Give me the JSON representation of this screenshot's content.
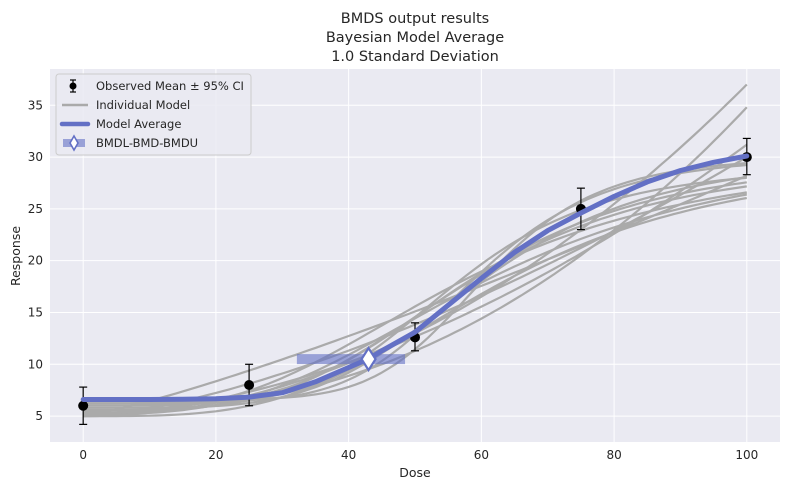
{
  "chart_data": {
    "type": "line",
    "title": [
      "BMDS output results",
      "Bayesian Model Average",
      "1.0 Standard Deviation"
    ],
    "xlabel": "Dose",
    "ylabel": "Response",
    "xlim": [
      -5,
      105
    ],
    "ylim": [
      2.5,
      38.5
    ],
    "xticks": [
      0,
      20,
      40,
      60,
      80,
      100
    ],
    "yticks": [
      5,
      10,
      15,
      20,
      25,
      30,
      35
    ],
    "grid": true,
    "legend_position": "top-left",
    "legend": [
      "Observed Mean ± 95% CI",
      "Individual Model",
      "Model Average",
      "BMDL-BMD-BMDU"
    ],
    "observed": [
      {
        "dose": 0,
        "mean": 6.0,
        "lower": 4.2,
        "upper": 7.8
      },
      {
        "dose": 25,
        "mean": 8.0,
        "lower": 6.0,
        "upper": 10.0
      },
      {
        "dose": 50,
        "mean": 12.6,
        "lower": 11.3,
        "upper": 14.0
      },
      {
        "dose": 75,
        "mean": 25.0,
        "lower": 23.0,
        "upper": 27.0
      },
      {
        "dose": 100,
        "mean": 30.0,
        "lower": 28.3,
        "upper": 31.8
      }
    ],
    "individual_models": [
      {
        "params": [
          6.6,
          23.5,
          60.6,
          7.0
        ]
      },
      {
        "params": [
          6.0,
          24.0,
          58.0,
          4.0
        ]
      },
      {
        "params": [
          5.5,
          25.0,
          57.0,
          3.0
        ]
      },
      {
        "params": [
          5.0,
          25.0,
          62.0,
          3.5
        ]
      },
      {
        "params": [
          6.2,
          23.0,
          56.0,
          5.0
        ]
      },
      {
        "params": [
          5.8,
          24.5,
          60.0,
          4.5
        ]
      },
      {
        "params": [
          5.2,
          26.0,
          61.0,
          3.0
        ]
      },
      {
        "params": [
          6.4,
          23.8,
          59.0,
          6.0
        ]
      },
      {
        "params": [
          5.6,
          24.2,
          57.5,
          3.8
        ]
      },
      {
        "powers": [
          5.0,
          32.0,
          2.0
        ]
      },
      {
        "powers": [
          5.0,
          25.0,
          1.5
        ]
      },
      {
        "powers": [
          5.3,
          29.5,
          2.3
        ]
      },
      {
        "powers": [
          5.0,
          23.2,
          1.2
        ]
      },
      {
        "powers": [
          5.2,
          26.0,
          1.8
        ]
      }
    ],
    "model_average": {
      "x": [
        0,
        5,
        10,
        15,
        20,
        25,
        30,
        35,
        40,
        43,
        45,
        50,
        55,
        60,
        65,
        70,
        75,
        80,
        85,
        90,
        95,
        100
      ],
      "y": [
        6.6,
        6.6,
        6.6,
        6.62,
        6.67,
        6.83,
        7.26,
        8.31,
        9.69,
        10.52,
        11.3,
        13.1,
        15.7,
        18.3,
        20.8,
        22.9,
        24.6,
        26.2,
        27.6,
        28.7,
        29.5,
        30.1
      ]
    },
    "bmd": {
      "bmdl": 32.2,
      "bmd": 43.0,
      "bmdu": 48.5,
      "response": 10.5
    }
  }
}
